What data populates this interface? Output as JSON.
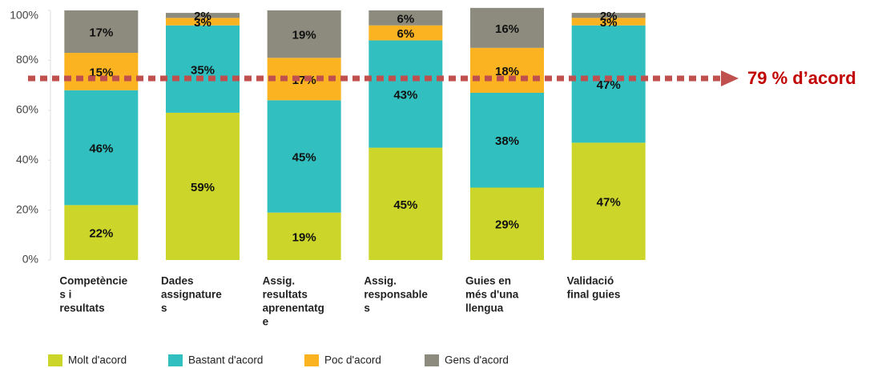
{
  "chart_data": {
    "type": "stacked-bar",
    "categories": [
      [
        "Competèncie",
        "s i",
        "resultats"
      ],
      [
        "Dades",
        "assignature",
        "s"
      ],
      [
        "Assig.",
        "resultats",
        "aprenentatg",
        "e"
      ],
      [
        "Assig.",
        "responsable",
        "s"
      ],
      [
        "Guies en",
        "més d'una",
        "llengua"
      ],
      [
        "Validació",
        "final guies"
      ]
    ],
    "series": [
      {
        "name": "Molt d'acord",
        "color": "#ccd62a",
        "values": [
          22,
          59,
          19,
          45,
          29,
          47
        ]
      },
      {
        "name": "Bastant d'acord",
        "color": "#31bfbf",
        "values": [
          46,
          35,
          45,
          43,
          38,
          47
        ]
      },
      {
        "name": "Poc d'acord",
        "color": "#fbb321",
        "values": [
          15,
          3,
          17,
          6,
          18,
          3
        ]
      },
      {
        "name": "Gens d'acord",
        "color": "#8c8b7d",
        "values": [
          17,
          2,
          19,
          6,
          16,
          2
        ]
      }
    ],
    "value_labels": [
      [
        "22%",
        "59%",
        "19%",
        "45%",
        "29%",
        "47%"
      ],
      [
        "46%",
        "35%",
        "45%",
        "43%",
        "38%",
        "47%"
      ],
      [
        "15%",
        "3%",
        "17%",
        "6%",
        "18%",
        "3%"
      ],
      [
        "17%",
        "2%",
        "19%",
        "6%",
        "16%",
        "2%"
      ]
    ],
    "ylim": [
      0,
      100
    ],
    "yticks": [
      {
        "value": 0,
        "label": "0%"
      },
      {
        "value": 20,
        "label": "20%"
      },
      {
        "value": 40,
        "label": "40%"
      },
      {
        "value": 60,
        "label": "60%"
      },
      {
        "value": 80,
        "label": "80%"
      },
      {
        "value": 100,
        "label": "100%"
      }
    ],
    "annotation": "79 % d’acord",
    "legend": "bottom"
  }
}
